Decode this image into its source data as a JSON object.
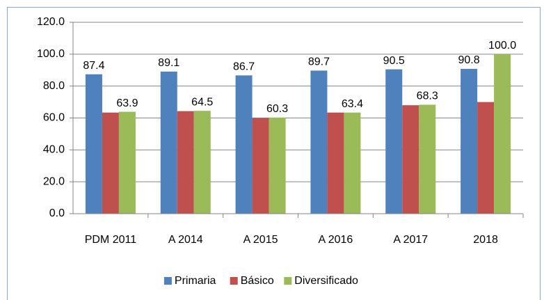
{
  "chart_data": {
    "type": "bar",
    "categories": [
      "PDM 2011",
      "A 2014",
      "A 2015",
      "A 2016",
      "A 2017",
      "2018"
    ],
    "series": [
      {
        "name": "Primaria",
        "color": "#4f81bd",
        "values": [
          87.4,
          89.1,
          86.7,
          89.7,
          90.5,
          90.8
        ],
        "value_labels": [
          "87.4",
          "89.1",
          "86.7",
          "89.7",
          "90.5",
          "90.8"
        ]
      },
      {
        "name": "Básico",
        "color": "#c0504d",
        "values": [
          63.4,
          64.3,
          60.0,
          63.4,
          68.0,
          70.0
        ]
      },
      {
        "name": "Diversificado",
        "color": "#9bbb59",
        "values": [
          63.9,
          64.5,
          60.3,
          63.4,
          68.3,
          100
        ],
        "value_labels": [
          "63.9",
          "64.5",
          "60.3",
          "63.4",
          "68.3",
          "100.0"
        ]
      }
    ],
    "ylim": [
      0,
      120
    ],
    "yticks": [
      {
        "value": 0,
        "label": "0.0"
      },
      {
        "value": 20,
        "label": "20.0"
      },
      {
        "value": 40,
        "label": "40.0"
      },
      {
        "value": 60,
        "label": "60.0"
      },
      {
        "value": 80,
        "label": "80.0"
      },
      {
        "value": 100,
        "label": "100.0"
      },
      {
        "value": 120,
        "label": "120.0"
      }
    ],
    "grid": true,
    "legend": "bottom"
  }
}
